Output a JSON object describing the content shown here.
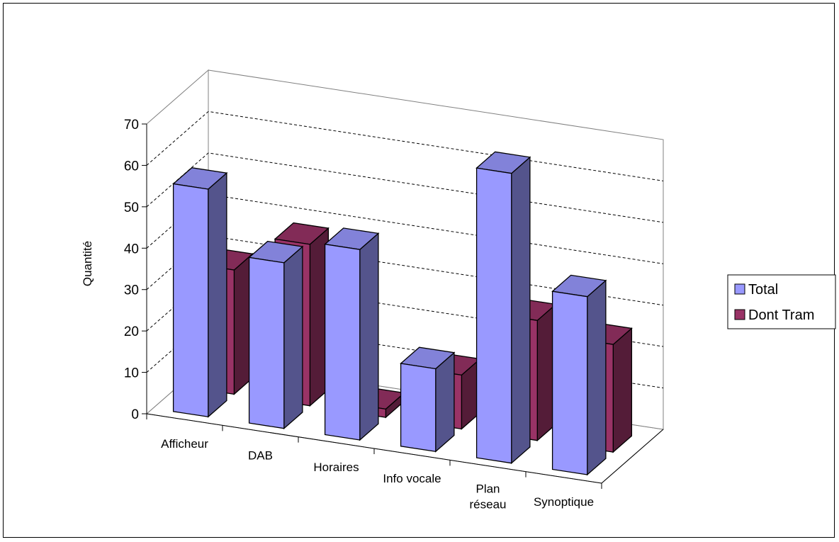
{
  "chart_data": {
    "type": "bar",
    "ylabel": "Quantité",
    "ylim": [
      0,
      70
    ],
    "yticks": [
      0,
      10,
      20,
      30,
      40,
      50,
      60,
      70
    ],
    "categories": [
      "Afficheur",
      "DAB",
      "Horaires",
      "Info vocale",
      "Plan réseau",
      "Synoptique"
    ],
    "category_lines": [
      [
        "Afficheur"
      ],
      [
        "DAB"
      ],
      [
        "Horaires"
      ],
      [
        "Info vocale"
      ],
      [
        "Plan",
        "réseau"
      ],
      [
        "Synoptique"
      ]
    ],
    "series": [
      {
        "name": "Total",
        "values": [
          55,
          40,
          46,
          20,
          70,
          43
        ],
        "color": "#9999ff"
      },
      {
        "name": "Dont Tram",
        "values": [
          30,
          39,
          2,
          13,
          29,
          26
        ],
        "color": "#993366"
      }
    ],
    "grid": true,
    "legend": "right"
  }
}
